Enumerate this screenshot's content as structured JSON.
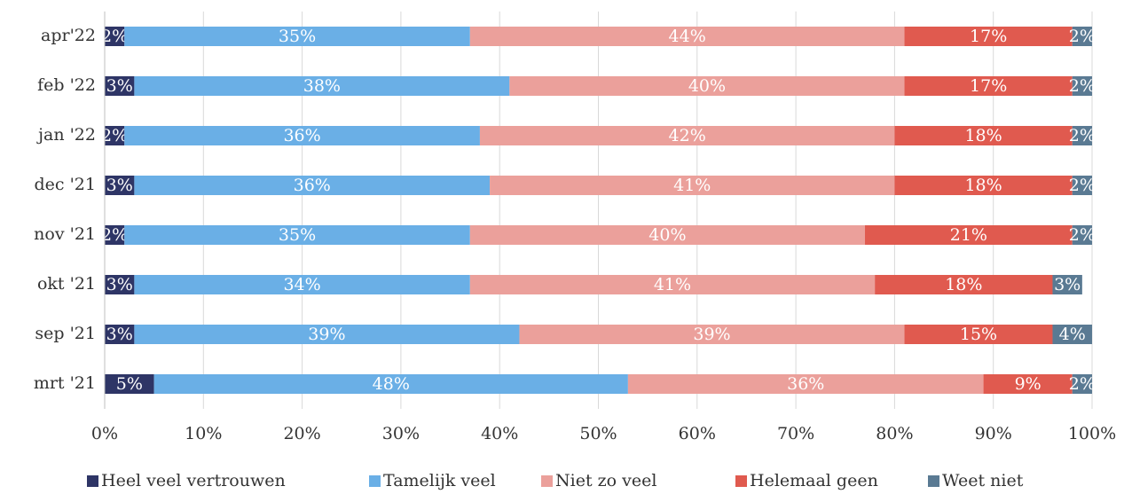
{
  "chart_data": {
    "type": "stacked_barh",
    "categories": [
      "apr'22",
      "feb '22",
      "jan '22",
      "dec '21",
      "nov '21",
      "okt '21",
      "sep '21",
      "mrt '21"
    ],
    "series": [
      {
        "name": "Heel veel vertrouwen",
        "color": "#2e3566",
        "values": [
          2,
          3,
          2,
          3,
          2,
          3,
          3,
          5
        ],
        "value_labels": [
          "2%",
          "3%",
          "2%",
          "3%",
          "2%",
          "3%",
          "3%",
          "5%"
        ]
      },
      {
        "name": "Tamelijk veel",
        "color": "#6aafe6",
        "values": [
          35,
          38,
          36,
          36,
          35,
          34,
          39,
          48
        ],
        "value_labels": [
          "35%",
          "38%",
          "36%",
          "36%",
          "35%",
          "34%",
          "39%",
          "48%"
        ]
      },
      {
        "name": "Niet zo veel",
        "color": "#eba09b",
        "values": [
          44,
          40,
          42,
          41,
          40,
          41,
          39,
          36
        ],
        "value_labels": [
          "44%",
          "40%",
          "42%",
          "41%",
          "40%",
          "41%",
          "39%",
          "36%"
        ]
      },
      {
        "name": "Helemaal geen",
        "color": "#e05a4f",
        "values": [
          17,
          17,
          18,
          18,
          21,
          18,
          15,
          9
        ],
        "value_labels": [
          "17%",
          "17%",
          "18%",
          "18%",
          "21%",
          "18%",
          "15%",
          "9%"
        ]
      },
      {
        "name": "Weet niet",
        "color": "#5a7a93",
        "values": [
          2,
          2,
          2,
          2,
          2,
          3,
          4,
          2
        ],
        "value_labels": [
          "2%",
          "2%",
          "2%",
          "2%",
          "2%",
          "3%",
          "4%",
          "2%"
        ]
      }
    ],
    "xlim": [
      0,
      100
    ],
    "xticks": [
      {
        "value": 0,
        "label": "0%"
      },
      {
        "value": 10,
        "label": "10%"
      },
      {
        "value": 20,
        "label": "20%"
      },
      {
        "value": 30,
        "label": "30%"
      },
      {
        "value": 40,
        "label": "40%"
      },
      {
        "value": 50,
        "label": "50%"
      },
      {
        "value": 60,
        "label": "60%"
      },
      {
        "value": 70,
        "label": "70%"
      },
      {
        "value": 80,
        "label": "80%"
      },
      {
        "value": 90,
        "label": "90%"
      },
      {
        "value": 100,
        "label": "100%"
      }
    ],
    "grid": true,
    "legend": "bottom"
  }
}
